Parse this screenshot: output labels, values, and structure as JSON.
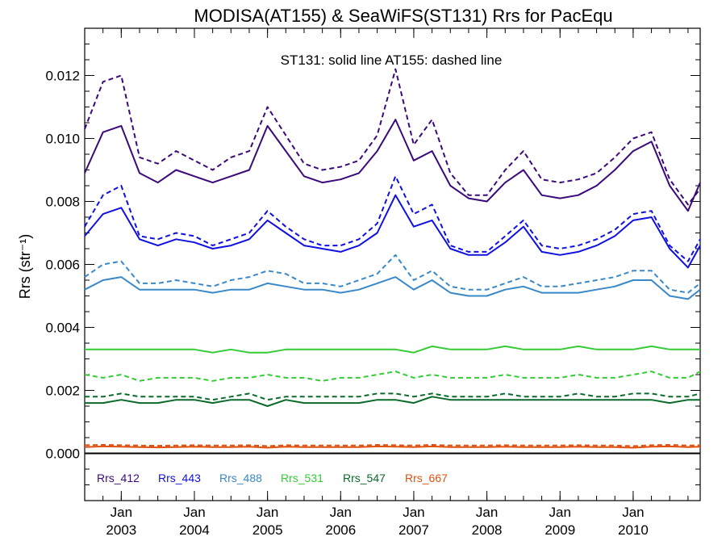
{
  "chart_data": {
    "type": "line",
    "title": "MODISA(AT155) & SeaWiFS(ST131)  Rrs for PacEqu",
    "ylabel": "Rrs (str⁻¹)",
    "xlabel": "",
    "annotation": "ST131: solid line   AT155: dashed line",
    "xlim": [
      "2002-07",
      "2010-12"
    ],
    "ylim": [
      -0.0015,
      0.0135
    ],
    "y_ticks": [
      "0.000",
      "0.002",
      "0.004",
      "0.006",
      "0.008",
      "0.010",
      "0.012"
    ],
    "x_ticks": [
      {
        "month": "Jan",
        "year": "2003",
        "x": "2003-01"
      },
      {
        "month": "Jan",
        "year": "2004",
        "x": "2004-01"
      },
      {
        "month": "Jan",
        "year": "2005",
        "x": "2005-01"
      },
      {
        "month": "Jan",
        "year": "2006",
        "x": "2006-01"
      },
      {
        "month": "Jan",
        "year": "2007",
        "x": "2007-01"
      },
      {
        "month": "Jan",
        "year": "2008",
        "x": "2008-01"
      },
      {
        "month": "Jan",
        "year": "2009",
        "x": "2009-01"
      },
      {
        "month": "Jan",
        "year": "2010",
        "x": "2010-01"
      }
    ],
    "zero_line": 0.0,
    "grid": false,
    "legend_position": "bottom-left",
    "series": [
      {
        "name": "Rrs_412",
        "color": "#3a0a7a",
        "style": "solid",
        "x": [
          "2002-07",
          "2002-10",
          "2003-01",
          "2003-04",
          "2003-07",
          "2003-10",
          "2004-01",
          "2004-04",
          "2004-07",
          "2004-10",
          "2005-01",
          "2005-04",
          "2005-07",
          "2005-10",
          "2006-01",
          "2006-04",
          "2006-07",
          "2006-10",
          "2007-01",
          "2007-04",
          "2007-07",
          "2007-10",
          "2008-01",
          "2008-04",
          "2008-07",
          "2008-10",
          "2009-01",
          "2009-04",
          "2009-07",
          "2009-10",
          "2010-01",
          "2010-04",
          "2010-07",
          "2010-10",
          "2010-12"
        ],
        "y": [
          0.0089,
          0.0102,
          0.0104,
          0.0089,
          0.0086,
          0.009,
          0.0088,
          0.0086,
          0.0088,
          0.009,
          0.0104,
          0.0096,
          0.0088,
          0.0086,
          0.0087,
          0.0089,
          0.0096,
          0.0106,
          0.0093,
          0.0096,
          0.0085,
          0.0081,
          0.008,
          0.0086,
          0.009,
          0.0082,
          0.0081,
          0.0082,
          0.0085,
          0.009,
          0.0096,
          0.0099,
          0.0085,
          0.0077,
          0.0086
        ]
      },
      {
        "name": "Rrs_412",
        "color": "#3a0a7a",
        "style": "dashed",
        "x": [
          "2002-07",
          "2002-10",
          "2003-01",
          "2003-04",
          "2003-07",
          "2003-10",
          "2004-01",
          "2004-04",
          "2004-07",
          "2004-10",
          "2005-01",
          "2005-04",
          "2005-07",
          "2005-10",
          "2006-01",
          "2006-04",
          "2006-07",
          "2006-10",
          "2007-01",
          "2007-04",
          "2007-07",
          "2007-10",
          "2008-01",
          "2008-04",
          "2008-07",
          "2008-10",
          "2009-01",
          "2009-04",
          "2009-07",
          "2009-10",
          "2010-01",
          "2010-04",
          "2010-07",
          "2010-10",
          "2010-12"
        ],
        "y": [
          0.0103,
          0.0118,
          0.012,
          0.0094,
          0.0092,
          0.0096,
          0.0093,
          0.009,
          0.0094,
          0.0096,
          0.011,
          0.0101,
          0.0092,
          0.009,
          0.0091,
          0.0093,
          0.0101,
          0.0122,
          0.0098,
          0.0106,
          0.0089,
          0.0082,
          0.0082,
          0.009,
          0.0096,
          0.0087,
          0.0086,
          0.0087,
          0.0089,
          0.0094,
          0.01,
          0.0102,
          0.0087,
          0.0079,
          0.0084
        ]
      },
      {
        "name": "Rrs_443",
        "color": "#1010e0",
        "style": "solid",
        "x": [
          "2002-07",
          "2002-10",
          "2003-01",
          "2003-04",
          "2003-07",
          "2003-10",
          "2004-01",
          "2004-04",
          "2004-07",
          "2004-10",
          "2005-01",
          "2005-04",
          "2005-07",
          "2005-10",
          "2006-01",
          "2006-04",
          "2006-07",
          "2006-10",
          "2007-01",
          "2007-04",
          "2007-07",
          "2007-10",
          "2008-01",
          "2008-04",
          "2008-07",
          "2008-10",
          "2009-01",
          "2009-04",
          "2009-07",
          "2009-10",
          "2010-01",
          "2010-04",
          "2010-07",
          "2010-10",
          "2010-12"
        ],
        "y": [
          0.0069,
          0.0076,
          0.0078,
          0.0068,
          0.0066,
          0.0068,
          0.0067,
          0.0065,
          0.0066,
          0.0068,
          0.0074,
          0.007,
          0.0066,
          0.0065,
          0.0064,
          0.0066,
          0.007,
          0.0082,
          0.0072,
          0.0074,
          0.0065,
          0.0063,
          0.0063,
          0.0067,
          0.0072,
          0.0064,
          0.0063,
          0.0064,
          0.0066,
          0.0069,
          0.0074,
          0.0075,
          0.0065,
          0.0059,
          0.0066
        ]
      },
      {
        "name": "Rrs_443",
        "color": "#1010e0",
        "style": "dashed",
        "x": [
          "2002-07",
          "2002-10",
          "2003-01",
          "2003-04",
          "2003-07",
          "2003-10",
          "2004-01",
          "2004-04",
          "2004-07",
          "2004-10",
          "2005-01",
          "2005-04",
          "2005-07",
          "2005-10",
          "2006-01",
          "2006-04",
          "2006-07",
          "2006-10",
          "2007-01",
          "2007-04",
          "2007-07",
          "2007-10",
          "2008-01",
          "2008-04",
          "2008-07",
          "2008-10",
          "2009-01",
          "2009-04",
          "2009-07",
          "2009-10",
          "2010-01",
          "2010-04",
          "2010-07",
          "2010-10",
          "2010-12"
        ],
        "y": [
          0.0072,
          0.0082,
          0.0085,
          0.0069,
          0.0068,
          0.007,
          0.0069,
          0.0066,
          0.0068,
          0.007,
          0.0077,
          0.0072,
          0.0068,
          0.0066,
          0.0066,
          0.0068,
          0.0073,
          0.0088,
          0.0076,
          0.0079,
          0.0066,
          0.0064,
          0.0064,
          0.0069,
          0.0074,
          0.0066,
          0.0065,
          0.0066,
          0.0068,
          0.0071,
          0.0076,
          0.0077,
          0.0066,
          0.0061,
          0.0068
        ]
      },
      {
        "name": "Rrs_488",
        "color": "#3a88c8",
        "style": "solid",
        "x": [
          "2002-07",
          "2002-10",
          "2003-01",
          "2003-04",
          "2003-07",
          "2003-10",
          "2004-01",
          "2004-04",
          "2004-07",
          "2004-10",
          "2005-01",
          "2005-04",
          "2005-07",
          "2005-10",
          "2006-01",
          "2006-04",
          "2006-07",
          "2006-10",
          "2007-01",
          "2007-04",
          "2007-07",
          "2007-10",
          "2008-01",
          "2008-04",
          "2008-07",
          "2008-10",
          "2009-01",
          "2009-04",
          "2009-07",
          "2009-10",
          "2010-01",
          "2010-04",
          "2010-07",
          "2010-10",
          "2010-12"
        ],
        "y": [
          0.0052,
          0.0055,
          0.0056,
          0.0052,
          0.0052,
          0.0052,
          0.0052,
          0.0051,
          0.0052,
          0.0052,
          0.0054,
          0.0053,
          0.0052,
          0.0052,
          0.0051,
          0.0052,
          0.0054,
          0.0056,
          0.0052,
          0.0055,
          0.0051,
          0.005,
          0.005,
          0.0052,
          0.0053,
          0.0051,
          0.0051,
          0.0051,
          0.0052,
          0.0053,
          0.0055,
          0.0055,
          0.005,
          0.0049,
          0.0052
        ]
      },
      {
        "name": "Rrs_488",
        "color": "#3a88c8",
        "style": "dashed",
        "x": [
          "2002-07",
          "2002-10",
          "2003-01",
          "2003-04",
          "2003-07",
          "2003-10",
          "2004-01",
          "2004-04",
          "2004-07",
          "2004-10",
          "2005-01",
          "2005-04",
          "2005-07",
          "2005-10",
          "2006-01",
          "2006-04",
          "2006-07",
          "2006-10",
          "2007-01",
          "2007-04",
          "2007-07",
          "2007-10",
          "2008-01",
          "2008-04",
          "2008-07",
          "2008-10",
          "2009-01",
          "2009-04",
          "2009-07",
          "2009-10",
          "2010-01",
          "2010-04",
          "2010-07",
          "2010-10",
          "2010-12"
        ],
        "y": [
          0.0056,
          0.006,
          0.0061,
          0.0054,
          0.0054,
          0.0055,
          0.0054,
          0.0053,
          0.0055,
          0.0056,
          0.0058,
          0.0057,
          0.0054,
          0.0054,
          0.0053,
          0.0055,
          0.0057,
          0.0063,
          0.0055,
          0.0058,
          0.0053,
          0.0052,
          0.0052,
          0.0054,
          0.0056,
          0.0053,
          0.0053,
          0.0054,
          0.0055,
          0.0056,
          0.0058,
          0.0058,
          0.0052,
          0.0051,
          0.0054
        ]
      },
      {
        "name": "Rrs_531",
        "color": "#33cc33",
        "style": "solid",
        "x": [
          "2002-07",
          "2002-10",
          "2003-01",
          "2003-04",
          "2003-07",
          "2003-10",
          "2004-01",
          "2004-04",
          "2004-07",
          "2004-10",
          "2005-01",
          "2005-04",
          "2005-07",
          "2005-10",
          "2006-01",
          "2006-04",
          "2006-07",
          "2006-10",
          "2007-01",
          "2007-04",
          "2007-07",
          "2007-10",
          "2008-01",
          "2008-04",
          "2008-07",
          "2008-10",
          "2009-01",
          "2009-04",
          "2009-07",
          "2009-10",
          "2010-01",
          "2010-04",
          "2010-07",
          "2010-10",
          "2010-12"
        ],
        "y": [
          0.0033,
          0.0033,
          0.0033,
          0.0033,
          0.0033,
          0.0033,
          0.0033,
          0.0032,
          0.0033,
          0.0032,
          0.0032,
          0.0033,
          0.0033,
          0.0033,
          0.0033,
          0.0033,
          0.0033,
          0.0033,
          0.0032,
          0.0034,
          0.0033,
          0.0033,
          0.0033,
          0.0034,
          0.0033,
          0.0033,
          0.0033,
          0.0034,
          0.0033,
          0.0033,
          0.0033,
          0.0034,
          0.0033,
          0.0033,
          0.0033
        ]
      },
      {
        "name": "Rrs_531",
        "color": "#33cc33",
        "style": "dashed",
        "x": [
          "2002-07",
          "2002-10",
          "2003-01",
          "2003-04",
          "2003-07",
          "2003-10",
          "2004-01",
          "2004-04",
          "2004-07",
          "2004-10",
          "2005-01",
          "2005-04",
          "2005-07",
          "2005-10",
          "2006-01",
          "2006-04",
          "2006-07",
          "2006-10",
          "2007-01",
          "2007-04",
          "2007-07",
          "2007-10",
          "2008-01",
          "2008-04",
          "2008-07",
          "2008-10",
          "2009-01",
          "2009-04",
          "2009-07",
          "2009-10",
          "2010-01",
          "2010-04",
          "2010-07",
          "2010-10",
          "2010-12"
        ],
        "y": [
          0.0025,
          0.0024,
          0.0025,
          0.0023,
          0.0024,
          0.0024,
          0.0024,
          0.0023,
          0.0024,
          0.0024,
          0.0025,
          0.0024,
          0.0024,
          0.0023,
          0.0024,
          0.0024,
          0.0025,
          0.0026,
          0.0024,
          0.0025,
          0.0024,
          0.0024,
          0.0024,
          0.0025,
          0.0024,
          0.0024,
          0.0024,
          0.0025,
          0.0024,
          0.0024,
          0.0025,
          0.0026,
          0.0024,
          0.0024,
          0.0026
        ]
      },
      {
        "name": "Rrs_547",
        "color": "#0a6a2a",
        "style": "solid",
        "x": [
          "2002-07",
          "2002-10",
          "2003-01",
          "2003-04",
          "2003-07",
          "2003-10",
          "2004-01",
          "2004-04",
          "2004-07",
          "2004-10",
          "2005-01",
          "2005-04",
          "2005-07",
          "2005-10",
          "2006-01",
          "2006-04",
          "2006-07",
          "2006-10",
          "2007-01",
          "2007-04",
          "2007-07",
          "2007-10",
          "2008-01",
          "2008-04",
          "2008-07",
          "2008-10",
          "2009-01",
          "2009-04",
          "2009-07",
          "2009-10",
          "2010-01",
          "2010-04",
          "2010-07",
          "2010-10",
          "2010-12"
        ],
        "y": [
          0.0016,
          0.0016,
          0.0017,
          0.0016,
          0.0016,
          0.0017,
          0.0017,
          0.0016,
          0.0017,
          0.0017,
          0.0015,
          0.0017,
          0.0016,
          0.0016,
          0.0016,
          0.0016,
          0.0017,
          0.0017,
          0.0016,
          0.0018,
          0.0017,
          0.0017,
          0.0017,
          0.0017,
          0.0017,
          0.0017,
          0.0017,
          0.0017,
          0.0017,
          0.0017,
          0.0017,
          0.0017,
          0.0016,
          0.0017,
          0.0017
        ]
      },
      {
        "name": "Rrs_547",
        "color": "#0a6a2a",
        "style": "dashed",
        "x": [
          "2002-07",
          "2002-10",
          "2003-01",
          "2003-04",
          "2003-07",
          "2003-10",
          "2004-01",
          "2004-04",
          "2004-07",
          "2004-10",
          "2005-01",
          "2005-04",
          "2005-07",
          "2005-10",
          "2006-01",
          "2006-04",
          "2006-07",
          "2006-10",
          "2007-01",
          "2007-04",
          "2007-07",
          "2007-10",
          "2008-01",
          "2008-04",
          "2008-07",
          "2008-10",
          "2009-01",
          "2009-04",
          "2009-07",
          "2009-10",
          "2010-01",
          "2010-04",
          "2010-07",
          "2010-10",
          "2010-12"
        ],
        "y": [
          0.0018,
          0.0018,
          0.0019,
          0.0018,
          0.0018,
          0.0018,
          0.0018,
          0.0017,
          0.0018,
          0.0019,
          0.0017,
          0.0018,
          0.0018,
          0.0018,
          0.0018,
          0.0018,
          0.0019,
          0.0019,
          0.0018,
          0.0019,
          0.0018,
          0.0018,
          0.0018,
          0.0019,
          0.0018,
          0.0018,
          0.0018,
          0.0019,
          0.0018,
          0.0018,
          0.0019,
          0.0019,
          0.0018,
          0.0018,
          0.0019
        ]
      },
      {
        "name": "Rrs_667",
        "color": "#e05010",
        "style": "solid",
        "x": [
          "2002-07",
          "2002-10",
          "2003-01",
          "2003-04",
          "2003-07",
          "2003-10",
          "2004-01",
          "2004-04",
          "2004-07",
          "2004-10",
          "2005-01",
          "2005-04",
          "2005-07",
          "2005-10",
          "2006-01",
          "2006-04",
          "2006-07",
          "2006-10",
          "2007-01",
          "2007-04",
          "2007-07",
          "2007-10",
          "2008-01",
          "2008-04",
          "2008-07",
          "2008-10",
          "2009-01",
          "2009-04",
          "2009-07",
          "2009-10",
          "2010-01",
          "2010-04",
          "2010-07",
          "2010-10",
          "2010-12"
        ],
        "y": [
          0.0002,
          0.00022,
          0.00021,
          0.0002,
          0.00019,
          0.0002,
          0.00021,
          0.0002,
          0.0002,
          0.00021,
          0.00018,
          0.00021,
          0.0002,
          0.0002,
          0.0002,
          0.0002,
          0.00022,
          0.00021,
          0.0002,
          0.00022,
          0.0002,
          0.0002,
          0.0002,
          0.00021,
          0.0002,
          0.0002,
          0.0002,
          0.00021,
          0.0002,
          0.0002,
          0.00018,
          0.00021,
          0.00022,
          0.0002,
          0.00021
        ]
      },
      {
        "name": "Rrs_667",
        "color": "#e05010",
        "style": "dashed",
        "x": [
          "2002-07",
          "2002-10",
          "2003-01",
          "2003-04",
          "2003-07",
          "2003-10",
          "2004-01",
          "2004-04",
          "2004-07",
          "2004-10",
          "2005-01",
          "2005-04",
          "2005-07",
          "2005-10",
          "2006-01",
          "2006-04",
          "2006-07",
          "2006-10",
          "2007-01",
          "2007-04",
          "2007-07",
          "2007-10",
          "2008-01",
          "2008-04",
          "2008-07",
          "2008-10",
          "2009-01",
          "2009-04",
          "2009-07",
          "2009-10",
          "2010-01",
          "2010-04",
          "2010-07",
          "2010-10",
          "2010-12"
        ],
        "y": [
          0.00026,
          0.00027,
          0.00026,
          0.00025,
          0.00024,
          0.00025,
          0.00026,
          0.00025,
          0.00025,
          0.00026,
          0.00023,
          0.00026,
          0.00025,
          0.00025,
          0.00025,
          0.00025,
          0.00027,
          0.00026,
          0.00025,
          0.00027,
          0.00025,
          0.00025,
          0.00025,
          0.00026,
          0.00025,
          0.00025,
          0.00025,
          0.00026,
          0.00025,
          0.00025,
          0.00023,
          0.00026,
          0.00027,
          0.00025,
          0.00026
        ]
      }
    ]
  }
}
